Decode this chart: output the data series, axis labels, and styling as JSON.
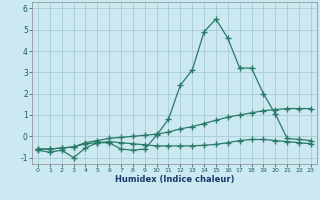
{
  "x": [
    0,
    1,
    2,
    3,
    4,
    5,
    6,
    7,
    8,
    9,
    10,
    11,
    12,
    13,
    14,
    15,
    16,
    17,
    18,
    19,
    20,
    21,
    22,
    23
  ],
  "line1": [
    -0.65,
    -0.75,
    -0.65,
    -1.0,
    -0.55,
    -0.3,
    -0.3,
    -0.6,
    -0.65,
    -0.6,
    0.05,
    0.8,
    2.4,
    3.1,
    4.9,
    5.5,
    4.6,
    3.2,
    3.2,
    2.0,
    1.05,
    -0.1,
    -0.15,
    -0.2
  ],
  "line2": [
    -0.6,
    -0.6,
    -0.55,
    -0.5,
    -0.3,
    -0.2,
    -0.1,
    -0.05,
    0.0,
    0.05,
    0.1,
    0.2,
    0.35,
    0.45,
    0.6,
    0.75,
    0.9,
    1.0,
    1.1,
    1.2,
    1.25,
    1.3,
    1.3,
    1.3
  ],
  "line3": [
    -0.6,
    -0.6,
    -0.55,
    -0.5,
    -0.35,
    -0.3,
    -0.25,
    -0.3,
    -0.35,
    -0.4,
    -0.45,
    -0.45,
    -0.45,
    -0.45,
    -0.42,
    -0.38,
    -0.3,
    -0.2,
    -0.15,
    -0.15,
    -0.2,
    -0.25,
    -0.3,
    -0.35
  ],
  "color": "#2a7a6a",
  "bg_color": "#cce8f0",
  "grid_color": "#aaccd8",
  "xlabel": "Humidex (Indice chaleur)",
  "xlim": [
    -0.5,
    23.5
  ],
  "ylim": [
    -1.3,
    6.3
  ],
  "yticks": [
    -1,
    0,
    1,
    2,
    3,
    4,
    5,
    6
  ],
  "xticks": [
    0,
    1,
    2,
    3,
    4,
    5,
    6,
    7,
    8,
    9,
    10,
    11,
    12,
    13,
    14,
    15,
    16,
    17,
    18,
    19,
    20,
    21,
    22,
    23
  ]
}
